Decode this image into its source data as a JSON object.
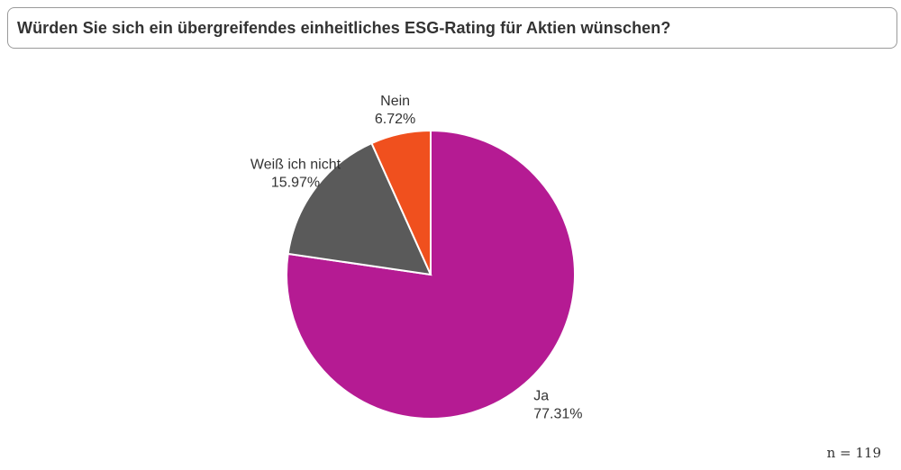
{
  "chart_data": {
    "type": "pie",
    "title": "Würden Sie sich ein übergreifendes einheitliches ESG-Rating für Aktien wünschen?",
    "slices": [
      {
        "label": "Ja",
        "value": 77.31,
        "value_label": "77.31%",
        "color": "#b51b93"
      },
      {
        "label": "Weiß ich nicht",
        "value": 15.97,
        "value_label": "15.97%",
        "color": "#5a5a5a"
      },
      {
        "label": "Nein",
        "value": 6.72,
        "value_label": "6.72%",
        "color": "#f0501e"
      }
    ],
    "start": "12 o'clock",
    "direction": "clockwise",
    "legend": "none"
  },
  "footnote": "n = 119"
}
